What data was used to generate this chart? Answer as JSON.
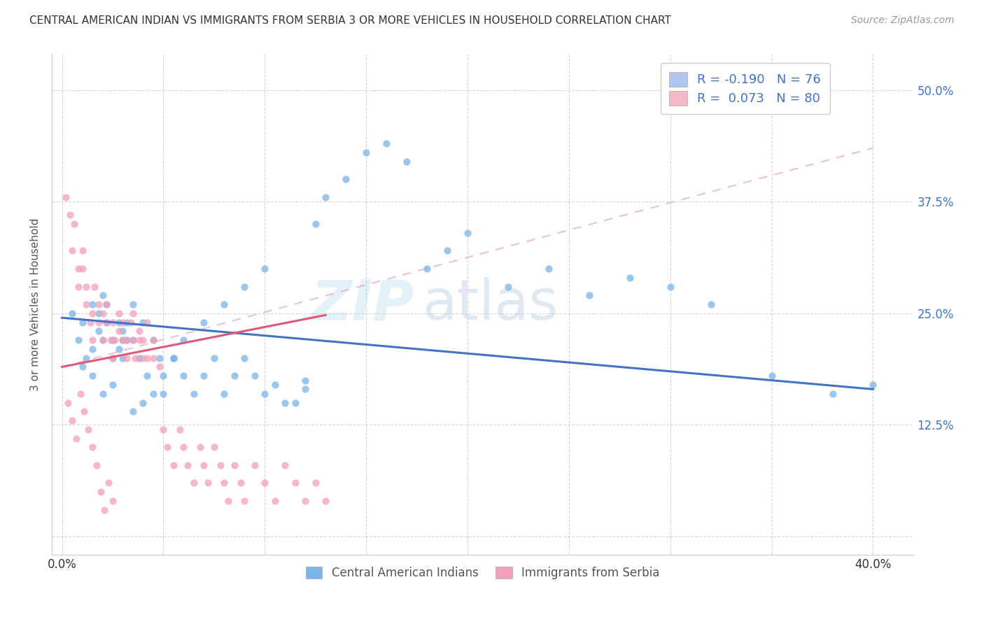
{
  "title": "CENTRAL AMERICAN INDIAN VS IMMIGRANTS FROM SERBIA 3 OR MORE VEHICLES IN HOUSEHOLD CORRELATION CHART",
  "source": "Source: ZipAtlas.com",
  "ylabel": "3 or more Vehicles in Household",
  "blue_scatter_x": [
    0.005,
    0.008,
    0.01,
    0.012,
    0.015,
    0.015,
    0.018,
    0.018,
    0.02,
    0.02,
    0.022,
    0.022,
    0.025,
    0.025,
    0.028,
    0.028,
    0.03,
    0.03,
    0.032,
    0.032,
    0.035,
    0.035,
    0.038,
    0.04,
    0.042,
    0.045,
    0.048,
    0.05,
    0.055,
    0.06,
    0.065,
    0.07,
    0.075,
    0.08,
    0.085,
    0.09,
    0.095,
    0.1,
    0.105,
    0.11,
    0.115,
    0.12,
    0.125,
    0.13,
    0.14,
    0.15,
    0.16,
    0.17,
    0.18,
    0.19,
    0.2,
    0.22,
    0.24,
    0.26,
    0.28,
    0.3,
    0.32,
    0.35,
    0.38,
    0.4,
    0.01,
    0.015,
    0.02,
    0.025,
    0.03,
    0.035,
    0.04,
    0.045,
    0.05,
    0.055,
    0.06,
    0.07,
    0.08,
    0.09,
    0.1,
    0.12
  ],
  "blue_scatter_y": [
    0.25,
    0.22,
    0.24,
    0.2,
    0.26,
    0.21,
    0.23,
    0.25,
    0.27,
    0.22,
    0.24,
    0.26,
    0.2,
    0.22,
    0.24,
    0.21,
    0.23,
    0.2,
    0.22,
    0.24,
    0.26,
    0.22,
    0.2,
    0.24,
    0.18,
    0.22,
    0.2,
    0.18,
    0.2,
    0.18,
    0.16,
    0.18,
    0.2,
    0.16,
    0.18,
    0.2,
    0.18,
    0.16,
    0.17,
    0.15,
    0.15,
    0.165,
    0.35,
    0.38,
    0.4,
    0.43,
    0.44,
    0.42,
    0.3,
    0.32,
    0.34,
    0.28,
    0.3,
    0.27,
    0.29,
    0.28,
    0.26,
    0.18,
    0.16,
    0.17,
    0.19,
    0.18,
    0.16,
    0.17,
    0.22,
    0.14,
    0.15,
    0.16,
    0.16,
    0.2,
    0.22,
    0.24,
    0.26,
    0.28,
    0.3,
    0.175
  ],
  "pink_scatter_x": [
    0.002,
    0.004,
    0.005,
    0.006,
    0.008,
    0.008,
    0.01,
    0.01,
    0.012,
    0.012,
    0.014,
    0.015,
    0.015,
    0.016,
    0.018,
    0.018,
    0.02,
    0.02,
    0.022,
    0.022,
    0.024,
    0.025,
    0.025,
    0.026,
    0.028,
    0.028,
    0.03,
    0.03,
    0.032,
    0.032,
    0.034,
    0.035,
    0.035,
    0.036,
    0.038,
    0.038,
    0.04,
    0.04,
    0.042,
    0.042,
    0.045,
    0.045,
    0.048,
    0.05,
    0.052,
    0.055,
    0.058,
    0.06,
    0.062,
    0.065,
    0.068,
    0.07,
    0.072,
    0.075,
    0.078,
    0.08,
    0.082,
    0.085,
    0.088,
    0.09,
    0.095,
    0.1,
    0.105,
    0.11,
    0.115,
    0.12,
    0.125,
    0.13,
    0.003,
    0.005,
    0.007,
    0.009,
    0.011,
    0.013,
    0.015,
    0.017,
    0.019,
    0.021,
    0.023,
    0.025
  ],
  "pink_scatter_y": [
    0.38,
    0.36,
    0.32,
    0.35,
    0.3,
    0.28,
    0.32,
    0.3,
    0.28,
    0.26,
    0.24,
    0.22,
    0.25,
    0.28,
    0.26,
    0.24,
    0.22,
    0.25,
    0.26,
    0.24,
    0.22,
    0.2,
    0.24,
    0.22,
    0.25,
    0.23,
    0.22,
    0.24,
    0.2,
    0.22,
    0.24,
    0.25,
    0.22,
    0.2,
    0.23,
    0.22,
    0.2,
    0.22,
    0.24,
    0.2,
    0.22,
    0.2,
    0.19,
    0.12,
    0.1,
    0.08,
    0.12,
    0.1,
    0.08,
    0.06,
    0.1,
    0.08,
    0.06,
    0.1,
    0.08,
    0.06,
    0.04,
    0.08,
    0.06,
    0.04,
    0.08,
    0.06,
    0.04,
    0.08,
    0.06,
    0.04,
    0.06,
    0.04,
    0.15,
    0.13,
    0.11,
    0.16,
    0.14,
    0.12,
    0.1,
    0.08,
    0.05,
    0.03,
    0.06,
    0.04
  ],
  "blue_line_x": [
    0.0,
    0.4
  ],
  "blue_line_y": [
    0.245,
    0.165
  ],
  "pink_line_x": [
    0.0,
    0.13
  ],
  "pink_line_y": [
    0.19,
    0.248
  ],
  "pink_dash_line_x": [
    0.0,
    0.4
  ],
  "pink_dash_line_y": [
    0.19,
    0.435
  ],
  "watermark_left": "ZIP",
  "watermark_right": "atlas",
  "xlim": [
    -0.005,
    0.42
  ],
  "ylim": [
    -0.02,
    0.54
  ],
  "xtick_vals": [
    0.0,
    0.05,
    0.1,
    0.15,
    0.2,
    0.25,
    0.3,
    0.35,
    0.4
  ],
  "ytick_vals": [
    0.0,
    0.125,
    0.25,
    0.375,
    0.5
  ],
  "ytick_labels": [
    "",
    "12.5%",
    "25.0%",
    "37.5%",
    "50.0%"
  ],
  "scatter_size": 55,
  "scatter_alpha": 0.75,
  "blue_color": "#7ab4e8",
  "pink_color": "#f4a0b8",
  "blue_line_color": "#4472c4",
  "pink_line_color": "#e05878",
  "pink_dash_color": "#e0a0b8",
  "legend_blue_face": "#aec6f0",
  "legend_pink_face": "#f4b8c8",
  "title_fontsize": 11,
  "source_fontsize": 10,
  "legend_fontsize": 13,
  "axis_label_fontsize": 11,
  "tick_fontsize": 12
}
